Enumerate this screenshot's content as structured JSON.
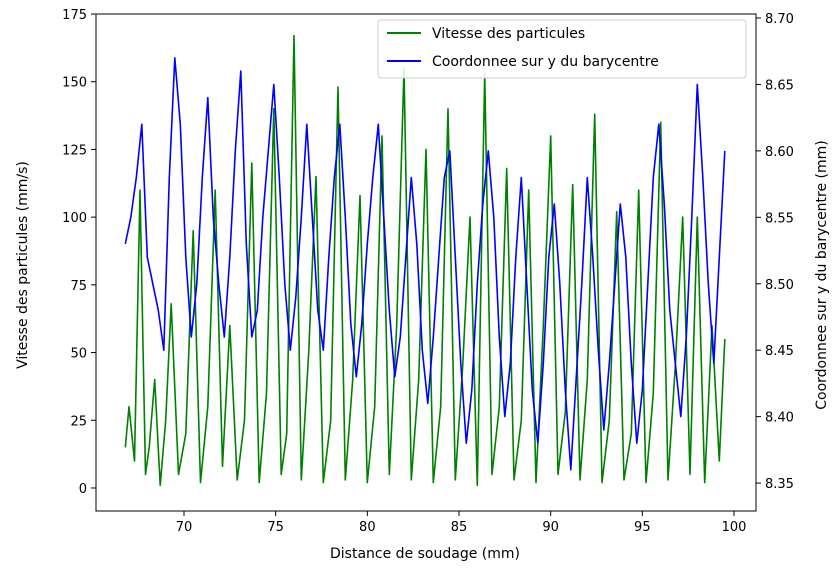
{
  "chart_data": {
    "type": "line",
    "xlabel": "Distance de soudage (mm)",
    "ylabel_left": "Vitesse des particules (mm/s)",
    "ylabel_right": "Coordonnee sur y du barycentre (mm)",
    "xlim": [
      65.2,
      101.2
    ],
    "ylim_left": [
      -8.5,
      175
    ],
    "ylim_right": [
      8.329,
      8.703
    ],
    "x_ticks": [
      70,
      75,
      80,
      85,
      90,
      95,
      100
    ],
    "y_ticks_left": [
      0,
      25,
      50,
      75,
      100,
      125,
      150,
      175
    ],
    "y_ticks_right": [
      8.35,
      8.4,
      8.45,
      8.5,
      8.55,
      8.6,
      8.65,
      8.7
    ],
    "x_tick_labels": [
      "70",
      "75",
      "80",
      "85",
      "90",
      "95",
      "100"
    ],
    "y_tick_labels_left": [
      "0",
      "25",
      "50",
      "75",
      "100",
      "125",
      "150",
      "175"
    ],
    "y_tick_labels_right": [
      "8.35",
      "8.40",
      "8.45",
      "8.50",
      "8.55",
      "8.60",
      "8.65",
      "8.70"
    ],
    "grid": false,
    "legend_position": "top-right",
    "series": [
      {
        "name": "Vitesse des particules",
        "axis": "left",
        "color": "#008000",
        "x": [
          66.8,
          67.0,
          67.3,
          67.6,
          67.9,
          68.1,
          68.4,
          68.7,
          69.0,
          69.3,
          69.7,
          70.1,
          70.5,
          70.9,
          71.3,
          71.7,
          72.1,
          72.5,
          72.9,
          73.3,
          73.7,
          74.1,
          74.5,
          74.9,
          75.3,
          75.6,
          76.0,
          76.4,
          76.8,
          77.2,
          77.6,
          78.0,
          78.4,
          78.8,
          79.2,
          79.6,
          80.0,
          80.4,
          80.8,
          81.2,
          81.6,
          82.0,
          82.4,
          82.8,
          83.2,
          83.6,
          84.0,
          84.4,
          84.8,
          85.2,
          85.6,
          86.0,
          86.4,
          86.8,
          87.2,
          87.6,
          88.0,
          88.4,
          88.8,
          89.2,
          89.6,
          90.0,
          90.4,
          90.8,
          91.2,
          91.6,
          92.0,
          92.4,
          92.8,
          93.2,
          93.6,
          94.0,
          94.4,
          94.8,
          95.2,
          95.6,
          96.0,
          96.4,
          96.8,
          97.2,
          97.6,
          98.0,
          98.4,
          98.8,
          99.2,
          99.5
        ],
        "y": [
          15,
          30,
          10,
          110,
          5,
          15,
          40,
          1,
          25,
          68,
          5,
          20,
          95,
          2,
          30,
          110,
          8,
          60,
          3,
          25,
          120,
          2,
          35,
          140,
          5,
          20,
          167,
          3,
          50,
          115,
          2,
          25,
          148,
          3,
          40,
          108,
          2,
          30,
          130,
          5,
          60,
          155,
          3,
          40,
          125,
          2,
          30,
          140,
          3,
          45,
          100,
          1,
          153,
          5,
          30,
          118,
          3,
          25,
          110,
          2,
          60,
          130,
          5,
          28,
          112,
          3,
          40,
          138,
          2,
          25,
          102,
          3,
          20,
          110,
          2,
          35,
          135,
          3,
          45,
          100,
          5,
          100,
          2,
          60,
          10,
          55
        ]
      },
      {
        "name": "Coordonnee sur y du barycentre",
        "axis": "right",
        "color": "#0000ff",
        "x": [
          66.8,
          67.1,
          67.4,
          67.7,
          68.0,
          68.3,
          68.6,
          68.9,
          69.2,
          69.5,
          69.8,
          70.1,
          70.4,
          70.7,
          71.0,
          71.3,
          71.6,
          71.9,
          72.2,
          72.5,
          72.8,
          73.1,
          73.4,
          73.7,
          74.0,
          74.3,
          74.6,
          74.9,
          75.2,
          75.5,
          75.8,
          76.1,
          76.4,
          76.7,
          77.0,
          77.3,
          77.6,
          77.9,
          78.2,
          78.5,
          78.8,
          79.1,
          79.4,
          79.7,
          80.0,
          80.3,
          80.6,
          80.9,
          81.2,
          81.5,
          81.8,
          82.1,
          82.4,
          82.7,
          83.0,
          83.3,
          83.6,
          83.9,
          84.2,
          84.5,
          84.8,
          85.1,
          85.4,
          85.7,
          86.0,
          86.3,
          86.6,
          86.9,
          87.2,
          87.5,
          87.8,
          88.1,
          88.4,
          88.7,
          89.0,
          89.3,
          89.6,
          89.9,
          90.2,
          90.5,
          90.8,
          91.1,
          91.4,
          91.7,
          92.0,
          92.3,
          92.6,
          92.9,
          93.2,
          93.5,
          93.8,
          94.1,
          94.4,
          94.7,
          95.0,
          95.3,
          95.6,
          95.9,
          96.2,
          96.5,
          96.8,
          97.1,
          97.4,
          97.7,
          98.0,
          98.3,
          98.6,
          98.9,
          99.2,
          99.5
        ],
        "y": [
          8.53,
          8.55,
          8.58,
          8.62,
          8.52,
          8.5,
          8.48,
          8.45,
          8.58,
          8.67,
          8.62,
          8.52,
          8.46,
          8.5,
          8.58,
          8.64,
          8.55,
          8.5,
          8.46,
          8.52,
          8.6,
          8.66,
          8.53,
          8.46,
          8.48,
          8.55,
          8.6,
          8.65,
          8.58,
          8.5,
          8.45,
          8.49,
          8.55,
          8.62,
          8.55,
          8.48,
          8.45,
          8.52,
          8.58,
          8.62,
          8.55,
          8.47,
          8.43,
          8.47,
          8.53,
          8.58,
          8.62,
          8.55,
          8.48,
          8.43,
          8.46,
          8.52,
          8.58,
          8.53,
          8.45,
          8.41,
          8.46,
          8.52,
          8.58,
          8.6,
          8.52,
          8.44,
          8.38,
          8.42,
          8.5,
          8.56,
          8.6,
          8.55,
          8.46,
          8.4,
          8.44,
          8.52,
          8.58,
          8.5,
          8.42,
          8.38,
          8.44,
          8.52,
          8.56,
          8.5,
          8.42,
          8.36,
          8.43,
          8.5,
          8.58,
          8.52,
          8.45,
          8.39,
          8.44,
          8.5,
          8.56,
          8.52,
          8.44,
          8.38,
          8.42,
          8.5,
          8.58,
          8.62,
          8.56,
          8.48,
          8.44,
          8.4,
          8.46,
          8.55,
          8.65,
          8.58,
          8.5,
          8.44,
          8.52,
          8.6
        ]
      }
    ]
  }
}
